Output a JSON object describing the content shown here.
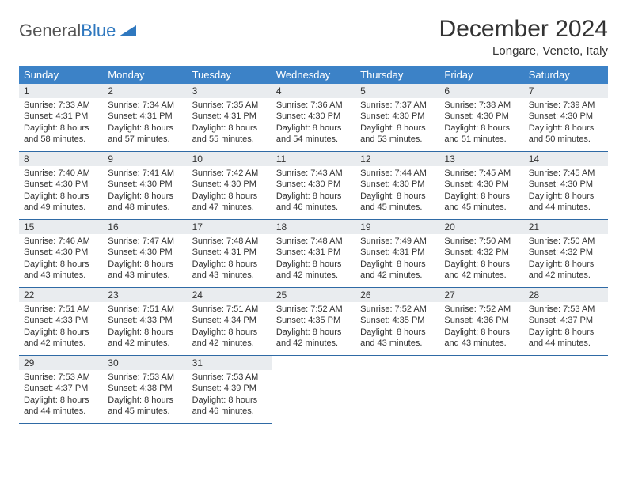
{
  "logo": {
    "text1": "General",
    "text2": "Blue"
  },
  "title": "December 2024",
  "location": "Longare, Veneto, Italy",
  "colors": {
    "header_bg": "#3c82c7",
    "header_text": "#ffffff",
    "day_strip_bg": "#e9ecef",
    "cell_border": "#2f6aa5",
    "logo_blue": "#2f78bf",
    "text": "#333333",
    "page_bg": "#ffffff"
  },
  "weekdays": [
    "Sunday",
    "Monday",
    "Tuesday",
    "Wednesday",
    "Thursday",
    "Friday",
    "Saturday"
  ],
  "days": [
    {
      "n": "1",
      "sunrise": "7:33 AM",
      "sunset": "4:31 PM",
      "daylight": "8 hours and 58 minutes."
    },
    {
      "n": "2",
      "sunrise": "7:34 AM",
      "sunset": "4:31 PM",
      "daylight": "8 hours and 57 minutes."
    },
    {
      "n": "3",
      "sunrise": "7:35 AM",
      "sunset": "4:31 PM",
      "daylight": "8 hours and 55 minutes."
    },
    {
      "n": "4",
      "sunrise": "7:36 AM",
      "sunset": "4:30 PM",
      "daylight": "8 hours and 54 minutes."
    },
    {
      "n": "5",
      "sunrise": "7:37 AM",
      "sunset": "4:30 PM",
      "daylight": "8 hours and 53 minutes."
    },
    {
      "n": "6",
      "sunrise": "7:38 AM",
      "sunset": "4:30 PM",
      "daylight": "8 hours and 51 minutes."
    },
    {
      "n": "7",
      "sunrise": "7:39 AM",
      "sunset": "4:30 PM",
      "daylight": "8 hours and 50 minutes."
    },
    {
      "n": "8",
      "sunrise": "7:40 AM",
      "sunset": "4:30 PM",
      "daylight": "8 hours and 49 minutes."
    },
    {
      "n": "9",
      "sunrise": "7:41 AM",
      "sunset": "4:30 PM",
      "daylight": "8 hours and 48 minutes."
    },
    {
      "n": "10",
      "sunrise": "7:42 AM",
      "sunset": "4:30 PM",
      "daylight": "8 hours and 47 minutes."
    },
    {
      "n": "11",
      "sunrise": "7:43 AM",
      "sunset": "4:30 PM",
      "daylight": "8 hours and 46 minutes."
    },
    {
      "n": "12",
      "sunrise": "7:44 AM",
      "sunset": "4:30 PM",
      "daylight": "8 hours and 45 minutes."
    },
    {
      "n": "13",
      "sunrise": "7:45 AM",
      "sunset": "4:30 PM",
      "daylight": "8 hours and 45 minutes."
    },
    {
      "n": "14",
      "sunrise": "7:45 AM",
      "sunset": "4:30 PM",
      "daylight": "8 hours and 44 minutes."
    },
    {
      "n": "15",
      "sunrise": "7:46 AM",
      "sunset": "4:30 PM",
      "daylight": "8 hours and 43 minutes."
    },
    {
      "n": "16",
      "sunrise": "7:47 AM",
      "sunset": "4:30 PM",
      "daylight": "8 hours and 43 minutes."
    },
    {
      "n": "17",
      "sunrise": "7:48 AM",
      "sunset": "4:31 PM",
      "daylight": "8 hours and 43 minutes."
    },
    {
      "n": "18",
      "sunrise": "7:48 AM",
      "sunset": "4:31 PM",
      "daylight": "8 hours and 42 minutes."
    },
    {
      "n": "19",
      "sunrise": "7:49 AM",
      "sunset": "4:31 PM",
      "daylight": "8 hours and 42 minutes."
    },
    {
      "n": "20",
      "sunrise": "7:50 AM",
      "sunset": "4:32 PM",
      "daylight": "8 hours and 42 minutes."
    },
    {
      "n": "21",
      "sunrise": "7:50 AM",
      "sunset": "4:32 PM",
      "daylight": "8 hours and 42 minutes."
    },
    {
      "n": "22",
      "sunrise": "7:51 AM",
      "sunset": "4:33 PM",
      "daylight": "8 hours and 42 minutes."
    },
    {
      "n": "23",
      "sunrise": "7:51 AM",
      "sunset": "4:33 PM",
      "daylight": "8 hours and 42 minutes."
    },
    {
      "n": "24",
      "sunrise": "7:51 AM",
      "sunset": "4:34 PM",
      "daylight": "8 hours and 42 minutes."
    },
    {
      "n": "25",
      "sunrise": "7:52 AM",
      "sunset": "4:35 PM",
      "daylight": "8 hours and 42 minutes."
    },
    {
      "n": "26",
      "sunrise": "7:52 AM",
      "sunset": "4:35 PM",
      "daylight": "8 hours and 43 minutes."
    },
    {
      "n": "27",
      "sunrise": "7:52 AM",
      "sunset": "4:36 PM",
      "daylight": "8 hours and 43 minutes."
    },
    {
      "n": "28",
      "sunrise": "7:53 AM",
      "sunset": "4:37 PM",
      "daylight": "8 hours and 44 minutes."
    },
    {
      "n": "29",
      "sunrise": "7:53 AM",
      "sunset": "4:37 PM",
      "daylight": "8 hours and 44 minutes."
    },
    {
      "n": "30",
      "sunrise": "7:53 AM",
      "sunset": "4:38 PM",
      "daylight": "8 hours and 45 minutes."
    },
    {
      "n": "31",
      "sunrise": "7:53 AM",
      "sunset": "4:39 PM",
      "daylight": "8 hours and 46 minutes."
    }
  ],
  "labels": {
    "sunrise": "Sunrise:",
    "sunset": "Sunset:",
    "daylight": "Daylight:"
  }
}
